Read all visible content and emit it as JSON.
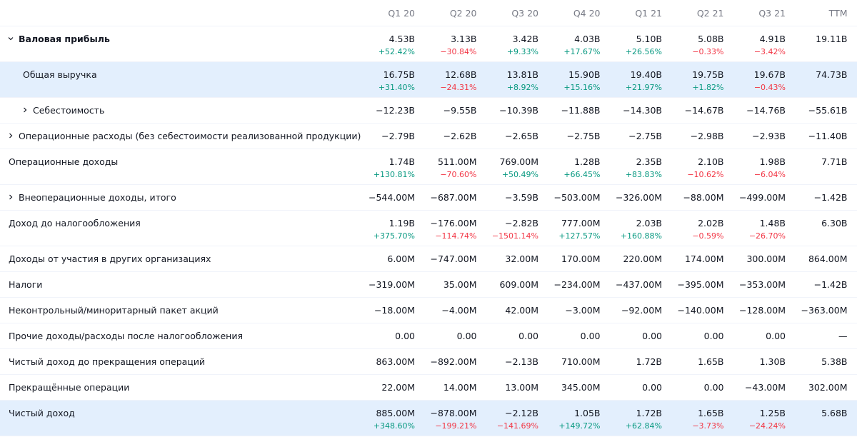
{
  "header": {
    "columns": [
      "Q1 20",
      "Q2 20",
      "Q3 20",
      "Q4 20",
      "Q1 21",
      "Q2 21",
      "Q3 21",
      "TTM"
    ]
  },
  "rows": [
    {
      "label": "Валовая прибыль",
      "level": 0,
      "expander": "open",
      "bold": true,
      "highlighted": false,
      "values": [
        "4.53B",
        "3.13B",
        "3.42B",
        "4.03B",
        "5.10B",
        "5.08B",
        "4.91B",
        "19.11B"
      ],
      "changes": [
        "+52.42%",
        "−30.84%",
        "+9.33%",
        "+17.67%",
        "+26.56%",
        "−0.33%",
        "−3.42%"
      ]
    },
    {
      "label": "Общая выручка",
      "level": 1,
      "expander": null,
      "bold": false,
      "highlighted": true,
      "values": [
        "16.75B",
        "12.68B",
        "13.81B",
        "15.90B",
        "19.40B",
        "19.75B",
        "19.67B",
        "74.73B"
      ],
      "changes": [
        "+31.40%",
        "−24.31%",
        "+8.92%",
        "+15.16%",
        "+21.97%",
        "+1.82%",
        "−0.43%"
      ]
    },
    {
      "label": "Себестоимость",
      "level": 1,
      "expander": "closed",
      "bold": false,
      "highlighted": false,
      "values": [
        "−12.23B",
        "−9.55B",
        "−10.39B",
        "−11.88B",
        "−14.30B",
        "−14.67B",
        "−14.76B",
        "−55.61B"
      ]
    },
    {
      "label": "Операционные расходы (без себестоимости реализованной продукции)",
      "level": 0,
      "expander": "closed",
      "bold": false,
      "highlighted": false,
      "values": [
        "−2.79B",
        "−2.62B",
        "−2.65B",
        "−2.75B",
        "−2.75B",
        "−2.98B",
        "−2.93B",
        "−11.40B"
      ]
    },
    {
      "label": "Операционные доходы",
      "level": 0,
      "expander": null,
      "bold": false,
      "highlighted": false,
      "values": [
        "1.74B",
        "511.00M",
        "769.00M",
        "1.28B",
        "2.35B",
        "2.10B",
        "1.98B",
        "7.71B"
      ],
      "changes": [
        "+130.81%",
        "−70.60%",
        "+50.49%",
        "+66.45%",
        "+83.83%",
        "−10.62%",
        "−6.04%"
      ]
    },
    {
      "label": "Внеоперационные доходы, итого",
      "level": 0,
      "expander": "closed",
      "bold": false,
      "highlighted": false,
      "values": [
        "−544.00M",
        "−687.00M",
        "−3.59B",
        "−503.00M",
        "−326.00M",
        "−88.00M",
        "−499.00M",
        "−1.42B"
      ]
    },
    {
      "label": "Доход до налогообложения",
      "level": 0,
      "expander": null,
      "bold": false,
      "highlighted": false,
      "values": [
        "1.19B",
        "−176.00M",
        "−2.82B",
        "777.00M",
        "2.03B",
        "2.02B",
        "1.48B",
        "6.30B"
      ],
      "changes": [
        "+375.70%",
        "−114.74%",
        "−1501.14%",
        "+127.57%",
        "+160.88%",
        "−0.59%",
        "−26.70%"
      ]
    },
    {
      "label": "Доходы от участия в других организациях",
      "level": 0,
      "expander": null,
      "bold": false,
      "highlighted": false,
      "values": [
        "6.00M",
        "−747.00M",
        "32.00M",
        "170.00M",
        "220.00M",
        "174.00M",
        "300.00M",
        "864.00M"
      ]
    },
    {
      "label": "Налоги",
      "level": 0,
      "expander": null,
      "bold": false,
      "highlighted": false,
      "values": [
        "−319.00M",
        "35.00M",
        "609.00M",
        "−234.00M",
        "−437.00M",
        "−395.00M",
        "−353.00M",
        "−1.42B"
      ]
    },
    {
      "label": "Неконтрольный/миноритарный пакет акций",
      "level": 0,
      "expander": null,
      "bold": false,
      "highlighted": false,
      "values": [
        "−18.00M",
        "−4.00M",
        "42.00M",
        "−3.00M",
        "−92.00M",
        "−140.00M",
        "−128.00M",
        "−363.00M"
      ]
    },
    {
      "label": "Прочие доходы/расходы после налогообложения",
      "level": 0,
      "expander": null,
      "bold": false,
      "highlighted": false,
      "values": [
        "0.00",
        "0.00",
        "0.00",
        "0.00",
        "0.00",
        "0.00",
        "0.00",
        "—"
      ]
    },
    {
      "label": "Чистый доход до прекращения операций",
      "level": 0,
      "expander": null,
      "bold": false,
      "highlighted": false,
      "values": [
        "863.00M",
        "−892.00M",
        "−2.13B",
        "710.00M",
        "1.72B",
        "1.65B",
        "1.30B",
        "5.38B"
      ]
    },
    {
      "label": "Прекращённые операции",
      "level": 0,
      "expander": null,
      "bold": false,
      "highlighted": false,
      "values": [
        "22.00M",
        "14.00M",
        "13.00M",
        "345.00M",
        "0.00",
        "0.00",
        "−43.00M",
        "302.00M"
      ]
    },
    {
      "label": "Чистый доход",
      "level": 0,
      "expander": null,
      "bold": false,
      "highlighted": true,
      "values": [
        "885.00M",
        "−878.00M",
        "−2.12B",
        "1.05B",
        "1.72B",
        "1.65B",
        "1.25B",
        "5.68B"
      ],
      "changes": [
        "+348.60%",
        "−199.21%",
        "−141.69%",
        "+149.72%",
        "+62.84%",
        "−3.73%",
        "−24.24%"
      ]
    }
  ]
}
